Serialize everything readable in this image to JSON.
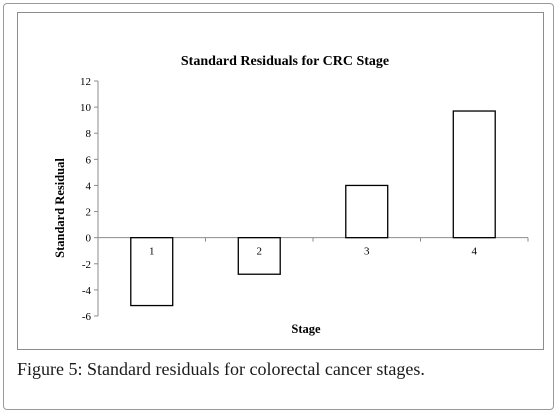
{
  "chart_data": {
    "type": "bar",
    "title": "Standard Residuals for CRC Stage",
    "xlabel": "Stage",
    "ylabel": "Standard Residual",
    "categories": [
      "1",
      "2",
      "3",
      "4"
    ],
    "values": [
      -5.2,
      -2.8,
      4.0,
      9.7
    ],
    "ylim": [
      -6,
      12
    ],
    "yticks": [
      12,
      10,
      8,
      6,
      4,
      2,
      0,
      -2,
      -4,
      -6
    ],
    "grid": false,
    "legend": "none",
    "bar_fill": "#ffffff",
    "bar_stroke": "#000000"
  },
  "caption": {
    "label": "Figure 5:",
    "text": " Standard residuals for colorectal cancer stages."
  }
}
